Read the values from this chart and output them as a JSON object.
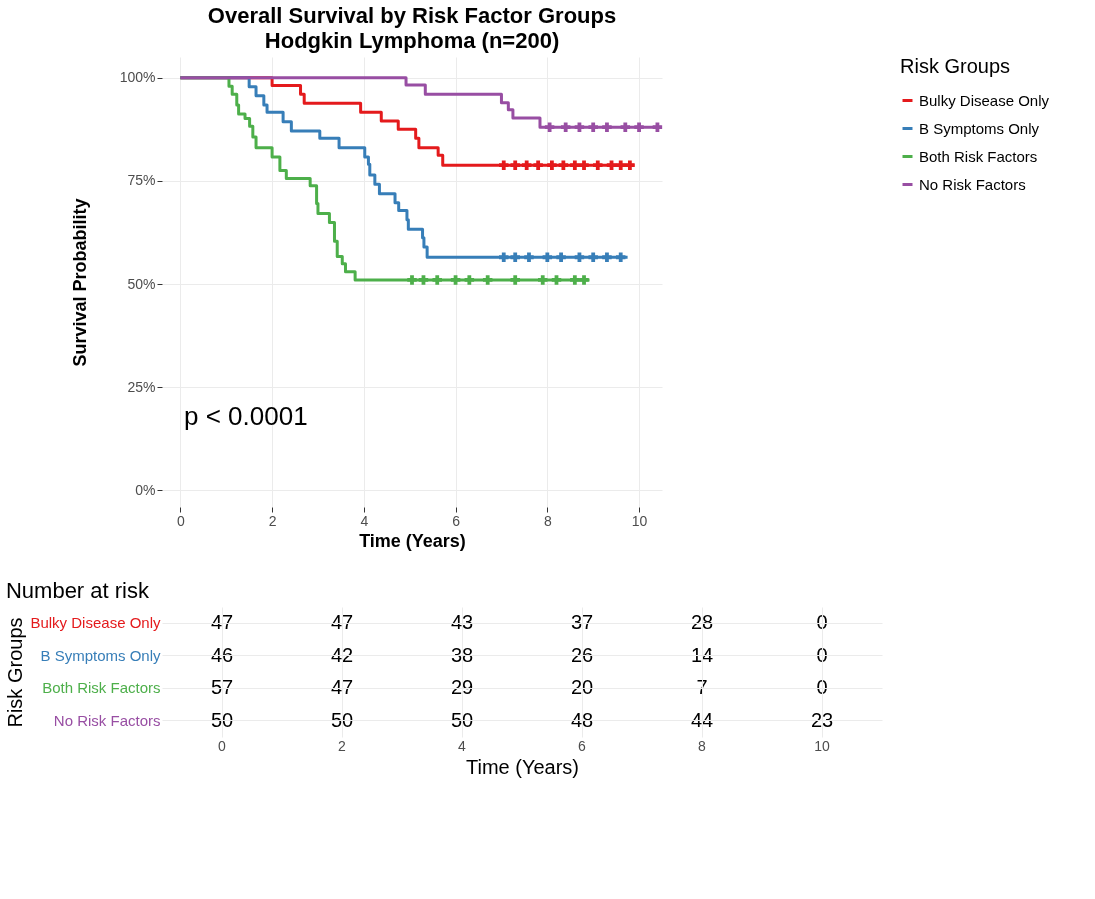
{
  "chart_data": [
    {
      "type": "step",
      "title": "Overall Survival by Risk Factor Groups",
      "subtitle": "Hodgkin Lymphoma (n=200)",
      "xlabel": "Time (Years)",
      "ylabel": "Survival Probability",
      "legend_title": "Risk Groups",
      "legend": "right",
      "grid": true,
      "xlim": [
        -0.4,
        10.5
      ],
      "xticks": [
        0,
        2,
        4,
        6,
        8,
        10
      ],
      "ylim": [
        -4,
        105
      ],
      "yticks": [
        {
          "value": 0,
          "label": "0%"
        },
        {
          "value": 25,
          "label": "25%"
        },
        {
          "value": 50,
          "label": "50%"
        },
        {
          "value": 75,
          "label": "75%"
        },
        {
          "value": 100,
          "label": "100%"
        }
      ],
      "annotations": [
        "p < 0.0001"
      ],
      "series": [
        {
          "name": "Bulky Disease Only",
          "color": "#e41a1c",
          "x": [
            0,
            2.0,
            2.62,
            2.7,
            3.93,
            4.38,
            4.75,
            5.13,
            5.2,
            5.62,
            5.72,
            9.9
          ],
          "values": [
            100,
            98.1,
            96,
            93.8,
            91.6,
            89.5,
            87.5,
            85.3,
            83.0,
            81.2,
            78.8,
            78.8
          ]
        },
        {
          "name": "B Symptoms Only",
          "color": "#377eb8",
          "x": [
            0,
            1.5,
            1.65,
            1.82,
            1.89,
            2.24,
            2.42,
            3.04,
            3.46,
            4.02,
            4.1,
            4.13,
            4.24,
            4.34,
            4.68,
            4.76,
            4.94,
            4.97,
            5.28,
            5.31,
            5.38,
            9.75
          ],
          "values": [
            100,
            97.8,
            95.6,
            93.4,
            91.6,
            89.3,
            87.1,
            85.3,
            83.0,
            80.8,
            79.0,
            76.4,
            74.2,
            71.9,
            69.7,
            67.8,
            65.6,
            63.3,
            61.2,
            59.0,
            56.5,
            56.5
          ]
        },
        {
          "name": "Both Risk Factors",
          "color": "#4daf4a",
          "x": [
            0,
            1.06,
            1.13,
            1.23,
            1.27,
            1.41,
            1.51,
            1.58,
            1.65,
            2.0,
            2.17,
            2.31,
            2.83,
            2.97,
            3.0,
            3.25,
            3.36,
            3.42,
            3.53,
            3.6,
            3.81,
            8.92
          ],
          "values": [
            100,
            97.9,
            96,
            93.4,
            91.2,
            90.1,
            88.2,
            85.6,
            83.0,
            80.8,
            77.5,
            75.6,
            73.8,
            69.5,
            67.1,
            64.9,
            60.4,
            56.7,
            54.9,
            53.0,
            51.0,
            51.0
          ]
        },
        {
          "name": "No Risk Factors",
          "color": "#984ea3",
          "x": [
            0,
            4.92,
            5.34,
            7.0,
            7.15,
            7.25,
            7.84,
            10.48
          ],
          "values": [
            100,
            98.2,
            96,
            93.9,
            92.2,
            90.2,
            88.0,
            88.0
          ]
        },
        {
          "type": "scatter",
          "marker": "cross",
          "color": "#e41a1c",
          "x": [
            7.05,
            7.3,
            7.55,
            7.8,
            8.1,
            8.35,
            8.6,
            8.8,
            9.1,
            9.4,
            9.6,
            9.8
          ],
          "values": [
            78.8,
            78.8,
            78.8,
            78.8,
            78.8,
            78.8,
            78.8,
            78.8,
            78.8,
            78.8,
            78.8,
            78.8
          ]
        },
        {
          "type": "scatter",
          "marker": "cross",
          "color": "#377eb8",
          "x": [
            7.05,
            7.3,
            7.6,
            8.0,
            8.3,
            8.7,
            9.0,
            9.3,
            9.6
          ],
          "values": [
            56.5,
            56.5,
            56.5,
            56.5,
            56.5,
            56.5,
            56.5,
            56.5,
            56.5
          ]
        },
        {
          "type": "scatter",
          "marker": "cross",
          "color": "#4daf4a",
          "x": [
            5.05,
            5.3,
            5.6,
            6.0,
            6.3,
            6.7,
            7.3,
            7.9,
            8.2,
            8.6,
            8.8
          ],
          "values": [
            51.0,
            51.0,
            51.0,
            51.0,
            51.0,
            51.0,
            51.0,
            51.0,
            51.0,
            51.0,
            51.0
          ]
        },
        {
          "type": "scatter",
          "marker": "cross",
          "color": "#984ea3",
          "x": [
            8.05,
            8.4,
            8.7,
            9.0,
            9.3,
            9.7,
            10.0,
            10.4
          ],
          "values": [
            88.0,
            88.0,
            88.0,
            88.0,
            88.0,
            88.0,
            88.0,
            88.0
          ]
        }
      ]
    },
    {
      "type": "heatmap",
      "title": "Number at risk",
      "xlabel": "Time (Years)",
      "ylabel": "Risk Groups",
      "grid": true,
      "data_labels": true,
      "categories": [
        "0",
        "2",
        "4",
        "6",
        "8",
        "10"
      ],
      "y_categories": [
        "Bulky Disease Only",
        "B Symptoms Only",
        "Both Risk Factors",
        "No Risk Factors"
      ],
      "cells": [
        [
          47,
          47,
          43,
          37,
          28,
          0
        ],
        [
          46,
          42,
          38,
          26,
          14,
          0
        ],
        [
          57,
          47,
          29,
          20,
          7,
          0
        ],
        [
          50,
          50,
          50,
          48,
          44,
          23
        ]
      ]
    }
  ]
}
